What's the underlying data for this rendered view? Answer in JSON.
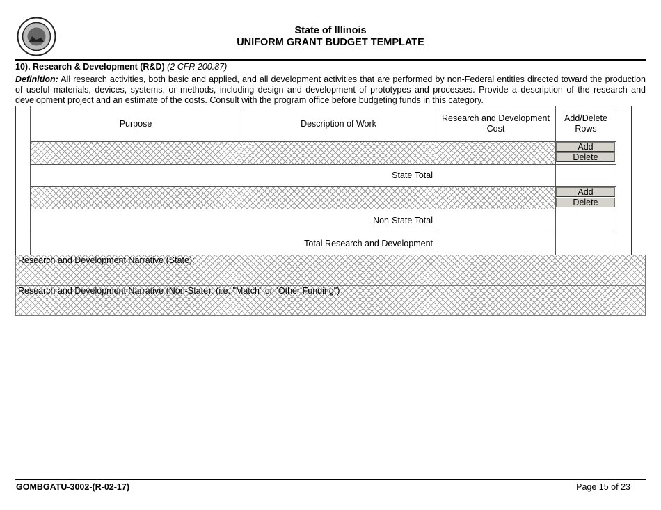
{
  "header": {
    "seal_text": "SEAL OF THE STATE OF ILLINOIS",
    "title": "State of Illinois",
    "subtitle": "UNIFORM GRANT BUDGET TEMPLATE"
  },
  "section": {
    "heading": "10). Research & Development (R&D)",
    "citation": "(2 CFR 200.87)",
    "definition_label": "Definition:",
    "definition_text": " All research activities, both basic and applied, and all development activities that are performed by non-Federal entities directed toward the production of useful materials, devices, systems, or methods, including design and development of prototypes and processes. Provide a description of the research and development project and an estimate of the costs. Consult with the program office before budgeting funds in this category."
  },
  "table": {
    "columns": [
      "Purpose",
      "Description of Work",
      "Research and Development Cost",
      "Add/Delete Rows"
    ],
    "add_label": "Add",
    "delete_label": "Delete",
    "state_total": "State Total",
    "non_state_total": "Non-State Total",
    "grand_total": "Total Research and Development"
  },
  "narratives": {
    "state": "Research and Development Narrative (State):",
    "non_state": "Research and Development Narrative (Non-State): (i.e. \"Match\" or \"Other Funding\")"
  },
  "footer": {
    "form_id": "GOMBGATU-3002-(R-02-17)",
    "page": "Page 15 of 23"
  }
}
